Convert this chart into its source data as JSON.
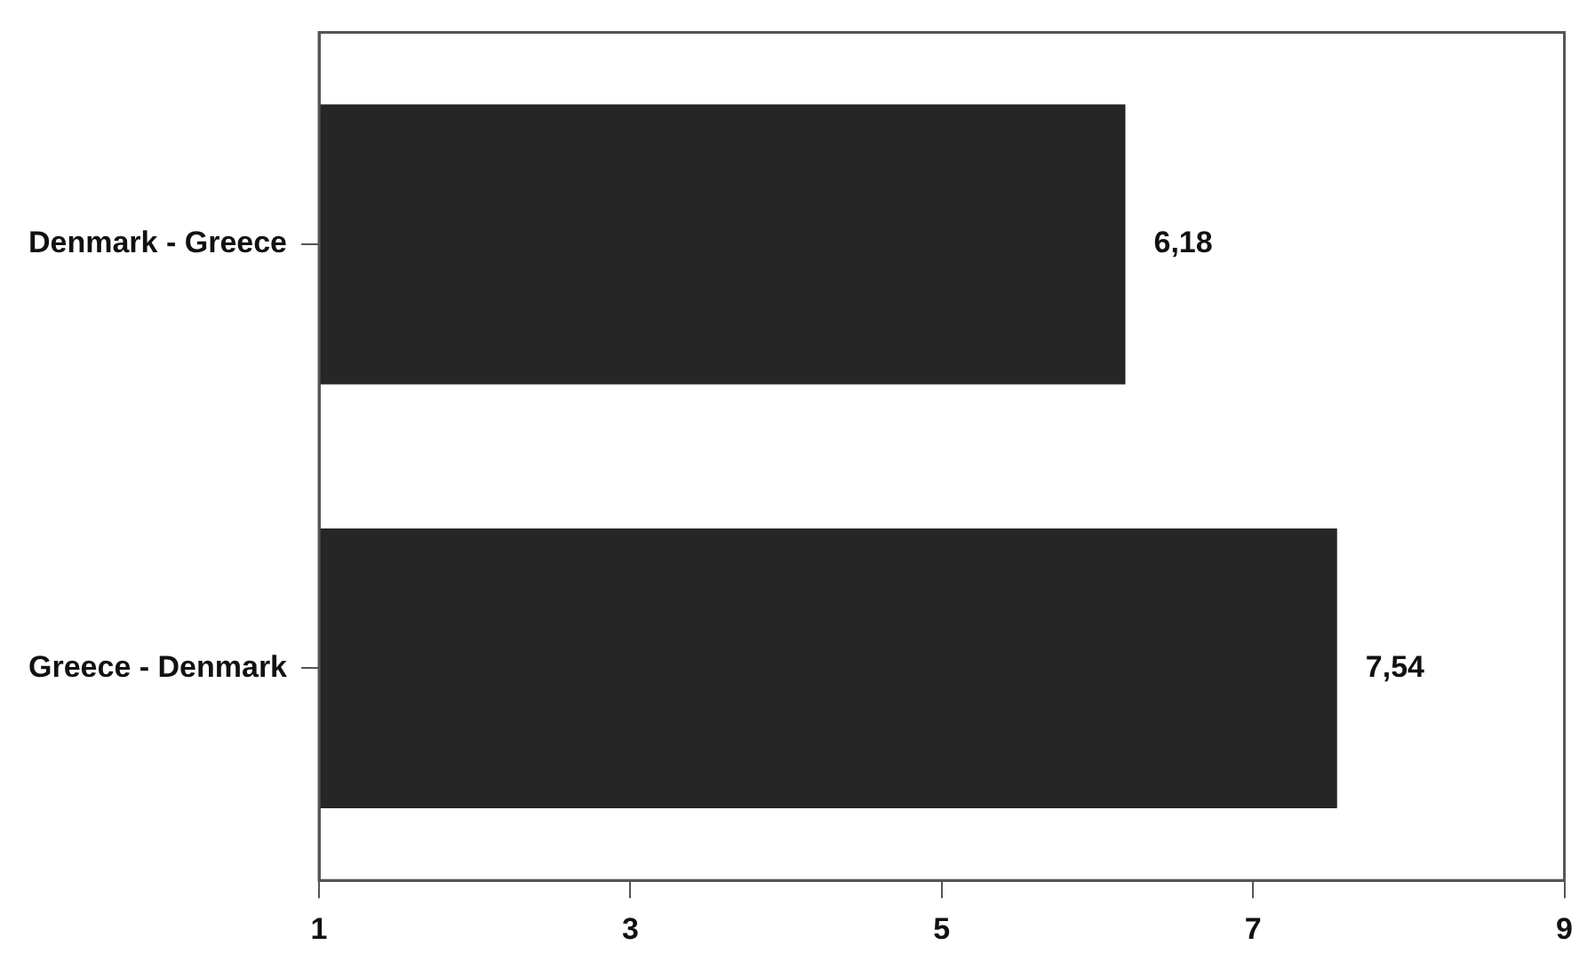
{
  "chart_data": {
    "type": "bar",
    "orientation": "horizontal",
    "categories": [
      "Denmark - Greece",
      "Greece - Denmark"
    ],
    "values": [
      6.18,
      7.54
    ],
    "value_labels": [
      "6,18",
      "7,54"
    ],
    "color": "#262626",
    "xlim": [
      1,
      9
    ],
    "xticks": [
      1,
      3,
      5,
      7,
      9
    ],
    "grid": false,
    "legend": false
  }
}
